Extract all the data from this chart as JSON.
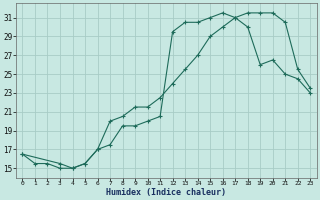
{
  "xlabel": "Humidex (Indice chaleur)",
  "bg_color": "#c8e8e2",
  "grid_color": "#a8ccc6",
  "line_color": "#1e6b5a",
  "xlim": [
    -0.5,
    23.5
  ],
  "ylim": [
    14.0,
    32.5
  ],
  "xticks": [
    0,
    1,
    2,
    3,
    4,
    5,
    6,
    7,
    8,
    9,
    10,
    11,
    12,
    13,
    14,
    15,
    16,
    17,
    18,
    19,
    20,
    21,
    22,
    23
  ],
  "yticks": [
    15,
    17,
    19,
    21,
    23,
    25,
    27,
    29,
    31
  ],
  "curve1_x": [
    0,
    1,
    2,
    3,
    4,
    5,
    6,
    7,
    8,
    9,
    10,
    11,
    12,
    13,
    14,
    15,
    16,
    17,
    18,
    19,
    20,
    21,
    22,
    23
  ],
  "curve1_y": [
    16.5,
    15.5,
    15.5,
    15.0,
    15.0,
    15.5,
    17.0,
    17.5,
    19.5,
    19.5,
    20.0,
    20.5,
    29.5,
    30.5,
    30.5,
    31.0,
    31.5,
    31.0,
    30.0,
    26.0,
    26.5,
    25.0,
    24.5,
    23.0
  ],
  "curve2_x": [
    0,
    3,
    4,
    5,
    6,
    7,
    8,
    9,
    10,
    11,
    12,
    13,
    14,
    15,
    16,
    17,
    18,
    19,
    20,
    21,
    22,
    23
  ],
  "curve2_y": [
    16.5,
    15.5,
    15.0,
    15.5,
    17.0,
    20.0,
    20.5,
    21.5,
    21.5,
    22.5,
    24.0,
    25.5,
    27.0,
    29.0,
    30.0,
    31.0,
    31.5,
    31.5,
    31.5,
    30.5,
    25.5,
    23.5
  ]
}
